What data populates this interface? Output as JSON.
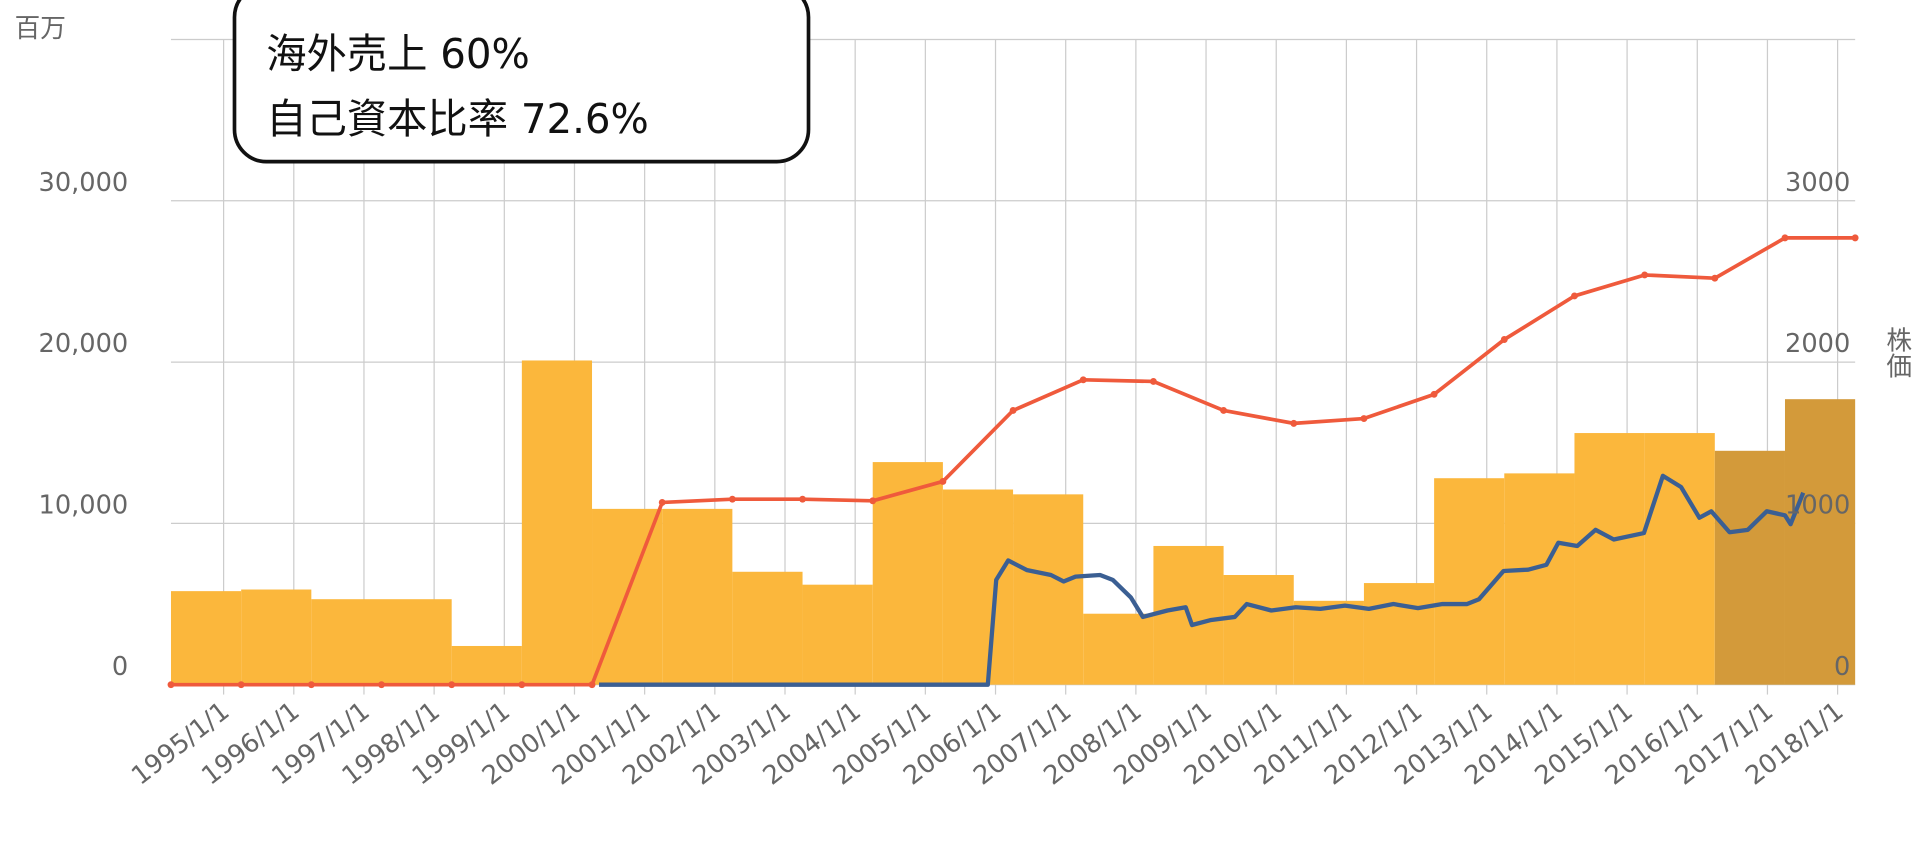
{
  "chart_data": {
    "type": "bar",
    "annotations": [
      "海外売上 60%",
      "自己資本比率 72.6%"
    ],
    "y_label": "百万",
    "y2_label": "株価",
    "xlim": [
      1994.25,
      2018.25
    ],
    "xticks": [
      {
        "value": 1995,
        "label": "1995/1/1"
      },
      {
        "value": 1996,
        "label": "1996/1/1"
      },
      {
        "value": 1997,
        "label": "1997/1/1"
      },
      {
        "value": 1998,
        "label": "1998/1/1"
      },
      {
        "value": 1999,
        "label": "1999/1/1"
      },
      {
        "value": 2000,
        "label": "2000/1/1"
      },
      {
        "value": 2001,
        "label": "2001/1/1"
      },
      {
        "value": 2002,
        "label": "2002/1/1"
      },
      {
        "value": 2003,
        "label": "2003/1/1"
      },
      {
        "value": 2004,
        "label": "2004/1/1"
      },
      {
        "value": 2005,
        "label": "2005/1/1"
      },
      {
        "value": 2006,
        "label": "2006/1/1"
      },
      {
        "value": 2007,
        "label": "2007/1/1"
      },
      {
        "value": 2008,
        "label": "2008/1/1"
      },
      {
        "value": 2009,
        "label": "2009/1/1"
      },
      {
        "value": 2010,
        "label": "2010/1/1"
      },
      {
        "value": 2011,
        "label": "2011/1/1"
      },
      {
        "value": 2012,
        "label": "2012/1/1"
      },
      {
        "value": 2013,
        "label": "2013/1/1"
      },
      {
        "value": 2014,
        "label": "2014/1/1"
      },
      {
        "value": 2015,
        "label": "2015/1/1"
      },
      {
        "value": 2016,
        "label": "2016/1/1"
      },
      {
        "value": 2017,
        "label": "2017/1/1"
      },
      {
        "value": 2018,
        "label": "2018/1/1"
      }
    ],
    "ylim": [
      0,
      40000
    ],
    "yticks": [
      0,
      {
        "value": 10000,
        "label": "10,000"
      },
      {
        "value": 20000,
        "label": "20,000"
      },
      {
        "value": 30000,
        "label": "30,000"
      }
    ],
    "y2lim": [
      0,
      4000
    ],
    "y2ticks": [
      0,
      1000,
      2000,
      3000
    ],
    "grid": true,
    "series": [
      {
        "kind": "bar",
        "bins": [
          1994.25,
          1995.25,
          1996.25,
          1997.25,
          1998.25,
          1999.25,
          2000.25,
          2001.25,
          2002.25,
          2003.25,
          2004.25,
          2005.25,
          2006.25,
          2007.25,
          2008.25,
          2009.25,
          2010.25,
          2011.25,
          2012.25,
          2013.25,
          2014.25,
          2015.25,
          2016.25,
          2017.25,
          2018.25
        ],
        "values": [
          5800,
          5900,
          5300,
          5300,
          2400,
          20100,
          10900,
          10900,
          7000,
          6200,
          13800,
          12100,
          11800,
          4400,
          8600,
          6800,
          5200,
          6300,
          12800,
          13100,
          15600,
          15600,
          14500,
          17700
        ],
        "colors": [
          "#fbb73c",
          "#fbb73c",
          "#fbb73c",
          "#fbb73c",
          "#fbb73c",
          "#fbb73c",
          "#fbb73c",
          "#fbb73c",
          "#fbb73c",
          "#fbb73c",
          "#fbb73c",
          "#fbb73c",
          "#fbb73c",
          "#fbb73c",
          "#fbb73c",
          "#fbb73c",
          "#fbb73c",
          "#fbb73c",
          "#fbb73c",
          "#fbb73c",
          "#fbb73c",
          "#fbb73c",
          "#d39a3a",
          "#d39a3a"
        ]
      },
      {
        "kind": "line",
        "color": "#ef5a3c",
        "markers": true,
        "x": [
          1994.25,
          1995.25,
          1996.25,
          1997.25,
          1998.25,
          1999.25,
          2000.25,
          2001.25,
          2002.25,
          2003.25,
          2004.25,
          2005.25,
          2006.25,
          2007.25,
          2008.25,
          2009.25,
          2010.25,
          2011.25,
          2012.25,
          2013.25,
          2014.25,
          2015.25,
          2016.25,
          2017.25,
          2018.25
        ],
        "values": [
          0,
          0,
          0,
          0,
          0,
          0,
          0,
          11300,
          11500,
          11500,
          11400,
          12600,
          17000,
          18900,
          18800,
          17000,
          16200,
          16500,
          18000,
          21400,
          24100,
          25400,
          25200,
          27700,
          27700
        ]
      },
      {
        "kind": "line",
        "color": "#3b5f93",
        "axis": "y2",
        "x": [
          2000.35,
          2005.89,
          2006.01,
          2006.18,
          2006.45,
          2006.79,
          2006.97,
          2007.14,
          2007.49,
          2007.67,
          2007.93,
          2008.1,
          2008.45,
          2008.71,
          2008.8,
          2009.06,
          2009.41,
          2009.58,
          2009.93,
          2010.28,
          2010.63,
          2010.98,
          2011.32,
          2011.67,
          2012.02,
          2012.37,
          2012.72,
          2012.89,
          2013.24,
          2013.59,
          2013.85,
          2014.02,
          2014.29,
          2014.55,
          2014.81,
          2015.24,
          2015.51,
          2015.77,
          2016.03,
          2016.2,
          2016.46,
          2016.72,
          2016.99,
          2017.25,
          2017.33,
          2017.51
        ],
        "values": [
          0,
          0,
          650,
          770,
          710,
          680,
          640,
          670,
          680,
          650,
          540,
          420,
          460,
          480,
          370,
          400,
          420,
          500,
          460,
          480,
          470,
          490,
          470,
          500,
          475,
          500,
          500,
          530,
          705,
          713,
          743,
          880,
          860,
          960,
          900,
          940,
          1295,
          1225,
          1035,
          1075,
          945,
          960,
          1075,
          1050,
          995,
          1190
        ]
      }
    ]
  }
}
